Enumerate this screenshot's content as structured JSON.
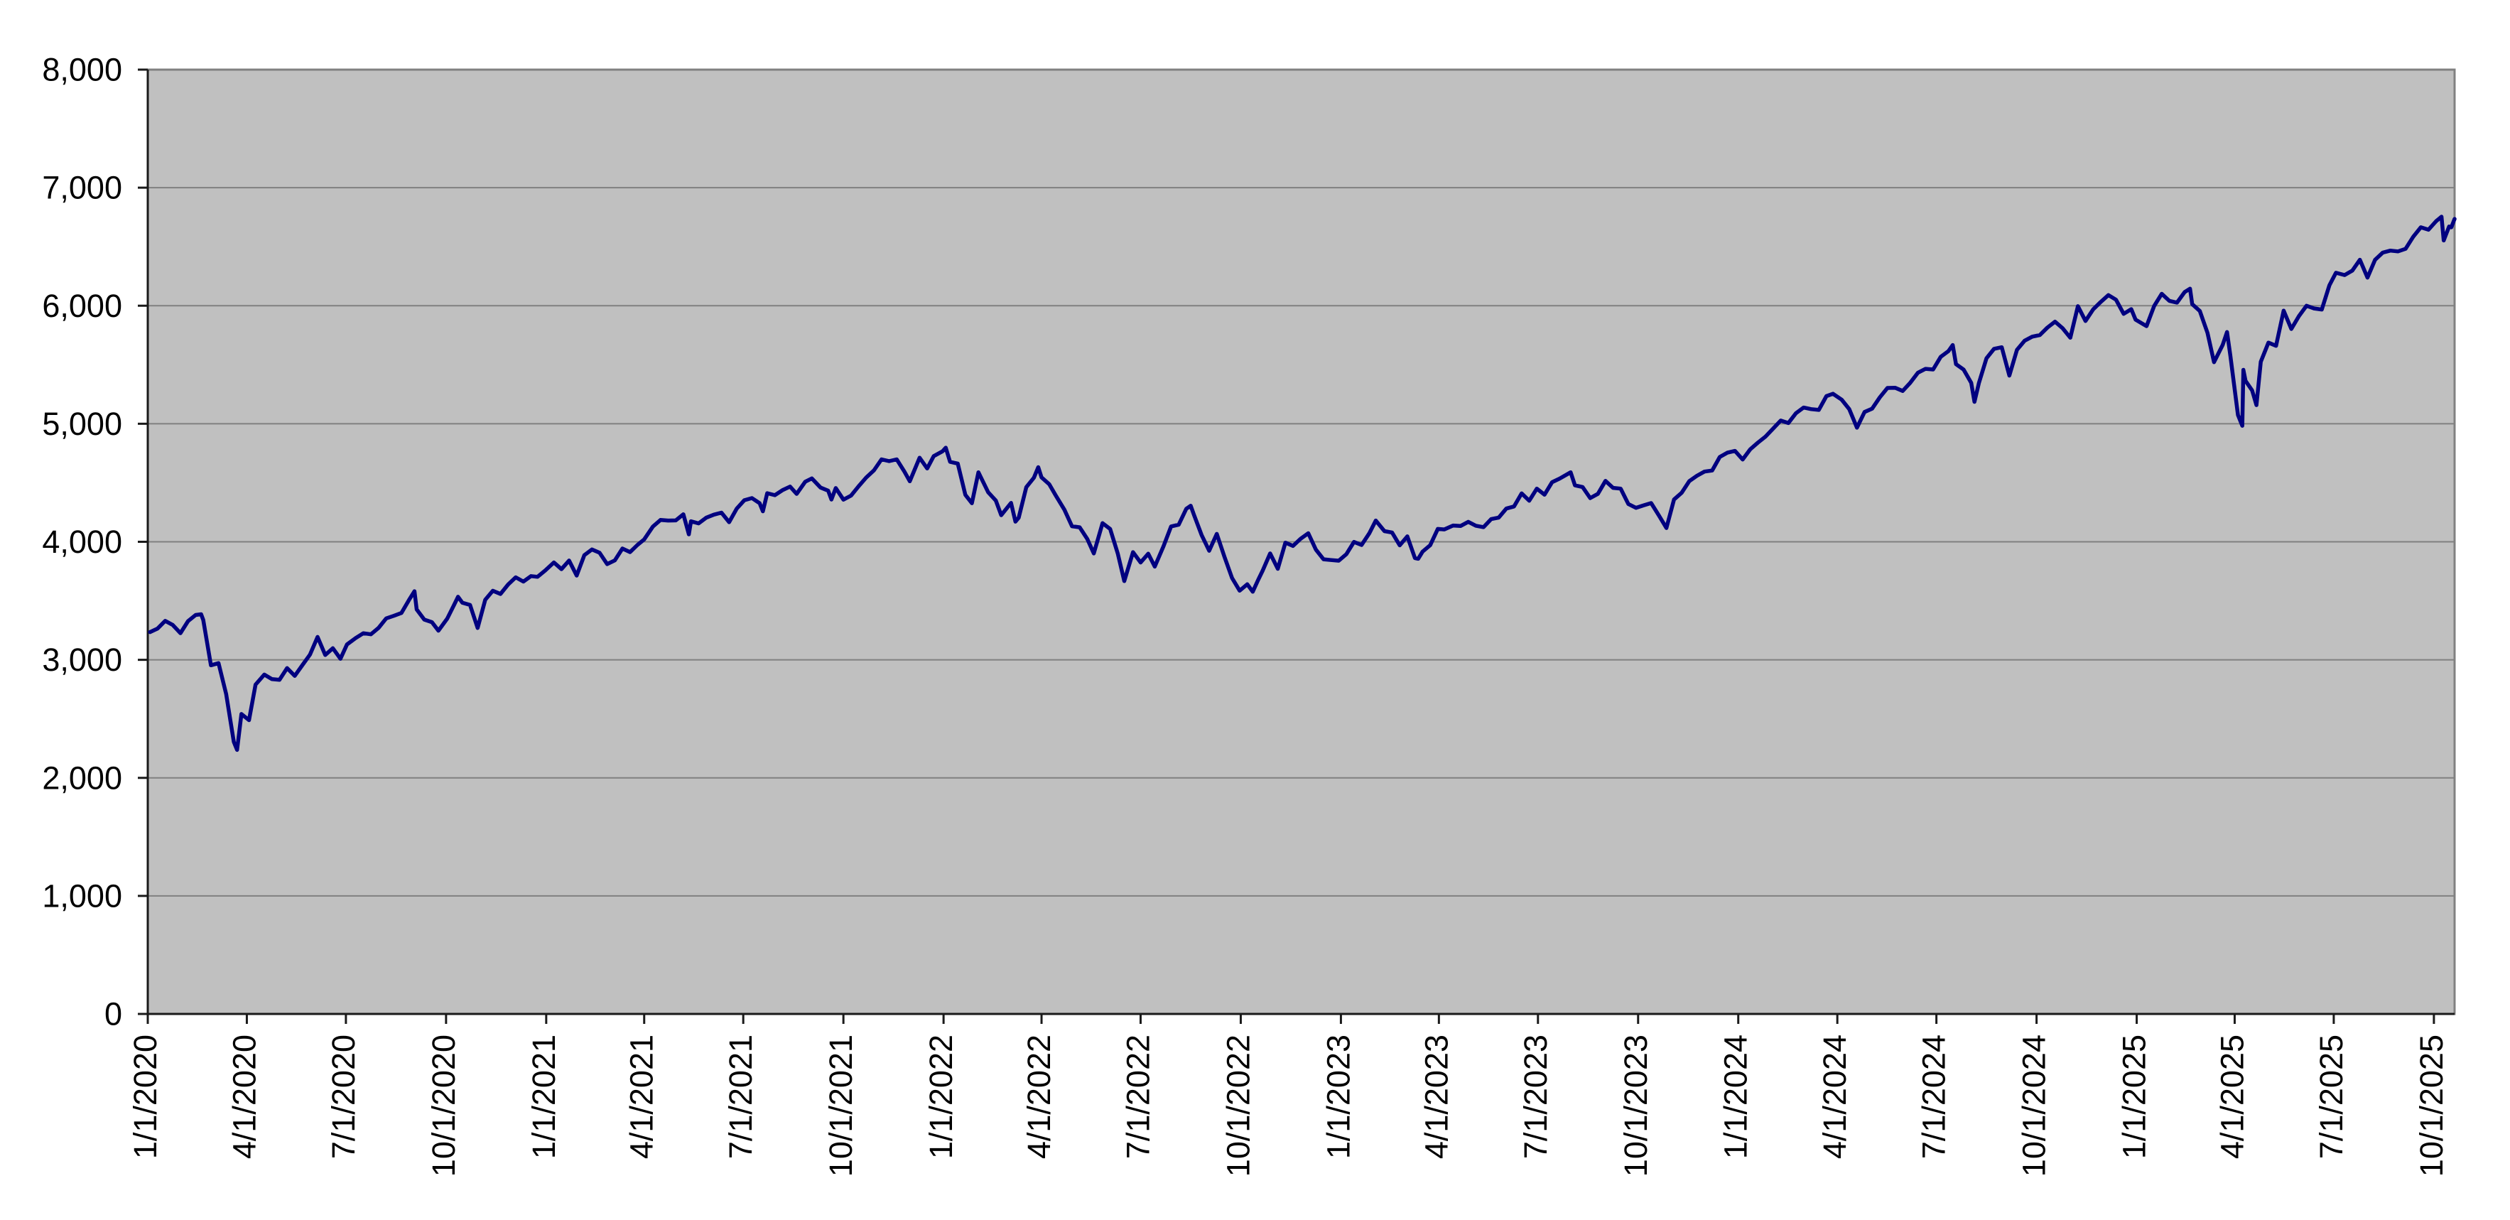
{
  "chart_data": {
    "type": "line",
    "title": "",
    "xlabel": "",
    "ylabel": "",
    "legend": "none",
    "grid": "horizontal",
    "plot_bg_color": "#c0c0c0",
    "grid_color": "#808080",
    "axis_color": "#1a1a1a",
    "line_color": "#000080",
    "ylim": [
      0,
      8000
    ],
    "y_ticks": [
      0,
      1000,
      2000,
      3000,
      4000,
      5000,
      6000,
      7000,
      8000
    ],
    "y_tick_labels": [
      "0",
      "1,000",
      "2,000",
      "3,000",
      "4,000",
      "5,000",
      "6,000",
      "7,000",
      "8,000"
    ],
    "x_tick_labels": [
      "1/1/2020",
      "4/1/2020",
      "7/1/2020",
      "10/1/2020",
      "1/1/2021",
      "4/1/2021",
      "7/1/2021",
      "10/1/2021",
      "1/1/2022",
      "4/1/2022",
      "7/1/2022",
      "10/1/2022",
      "1/1/2023",
      "4/1/2023",
      "7/1/2023",
      "10/1/2023",
      "1/1/2024",
      "4/1/2024",
      "7/1/2024",
      "10/1/2024",
      "1/1/2025",
      "4/1/2025",
      "7/1/2025",
      "10/1/2025"
    ],
    "x_domain": [
      "1/1/2020",
      "10/20/2025"
    ],
    "points": [
      [
        "1/3/2020",
        3235
      ],
      [
        "1/10/2020",
        3265
      ],
      [
        "1/17/2020",
        3330
      ],
      [
        "1/24/2020",
        3295
      ],
      [
        "1/31/2020",
        3226
      ],
      [
        "2/7/2020",
        3328
      ],
      [
        "2/14/2020",
        3380
      ],
      [
        "2/19/2020",
        3386
      ],
      [
        "2/21/2020",
        3338
      ],
      [
        "2/28/2020",
        2954
      ],
      [
        "3/6/2020",
        2972
      ],
      [
        "3/13/2020",
        2711
      ],
      [
        "3/20/2020",
        2305
      ],
      [
        "3/23/2020",
        2237
      ],
      [
        "3/27/2020",
        2541
      ],
      [
        "4/3/2020",
        2489
      ],
      [
        "4/9/2020",
        2790
      ],
      [
        "4/17/2020",
        2875
      ],
      [
        "4/24/2020",
        2837
      ],
      [
        "5/1/2020",
        2831
      ],
      [
        "5/8/2020",
        2930
      ],
      [
        "5/15/2020",
        2864
      ],
      [
        "5/22/2020",
        2955
      ],
      [
        "5/29/2020",
        3044
      ],
      [
        "6/5/2020",
        3194
      ],
      [
        "6/12/2020",
        3041
      ],
      [
        "6/19/2020",
        3098
      ],
      [
        "6/26/2020",
        3009
      ],
      [
        "7/2/2020",
        3130
      ],
      [
        "7/10/2020",
        3185
      ],
      [
        "7/17/2020",
        3225
      ],
      [
        "7/24/2020",
        3216
      ],
      [
        "7/31/2020",
        3271
      ],
      [
        "8/7/2020",
        3351
      ],
      [
        "8/14/2020",
        3373
      ],
      [
        "8/21/2020",
        3397
      ],
      [
        "8/28/2020",
        3508
      ],
      [
        "9/2/2020",
        3581
      ],
      [
        "9/4/2020",
        3427
      ],
      [
        "9/11/2020",
        3341
      ],
      [
        "9/18/2020",
        3319
      ],
      [
        "9/24/2020",
        3247
      ],
      [
        "10/2/2020",
        3348
      ],
      [
        "10/9/2020",
        3477
      ],
      [
        "10/12/2020",
        3534
      ],
      [
        "10/16/2020",
        3484
      ],
      [
        "10/23/2020",
        3465
      ],
      [
        "10/30/2020",
        3270
      ],
      [
        "11/6/2020",
        3509
      ],
      [
        "11/13/2020",
        3585
      ],
      [
        "11/20/2020",
        3558
      ],
      [
        "11/27/2020",
        3638
      ],
      [
        "12/4/2020",
        3699
      ],
      [
        "12/11/2020",
        3663
      ],
      [
        "12/18/2020",
        3709
      ],
      [
        "12/24/2020",
        3703
      ],
      [
        "12/31/2020",
        3756
      ],
      [
        "1/8/2021",
        3825
      ],
      [
        "1/15/2021",
        3768
      ],
      [
        "1/22/2021",
        3841
      ],
      [
        "1/29/2021",
        3714
      ],
      [
        "2/5/2021",
        3887
      ],
      [
        "2/12/2021",
        3935
      ],
      [
        "2/19/2021",
        3907
      ],
      [
        "2/26/2021",
        3811
      ],
      [
        "3/5/2021",
        3842
      ],
      [
        "3/12/2021",
        3943
      ],
      [
        "3/19/2021",
        3913
      ],
      [
        "3/26/2021",
        3975
      ],
      [
        "4/1/2021",
        4020
      ],
      [
        "4/9/2021",
        4129
      ],
      [
        "4/16/2021",
        4185
      ],
      [
        "4/23/2021",
        4180
      ],
      [
        "4/30/2021",
        4181
      ],
      [
        "5/7/2021",
        4233
      ],
      [
        "5/12/2021",
        4063
      ],
      [
        "5/14/2021",
        4174
      ],
      [
        "5/21/2021",
        4156
      ],
      [
        "5/28/2021",
        4204
      ],
      [
        "6/4/2021",
        4230
      ],
      [
        "6/11/2021",
        4247
      ],
      [
        "6/18/2021",
        4166
      ],
      [
        "6/25/2021",
        4281
      ],
      [
        "7/2/2021",
        4352
      ],
      [
        "7/9/2021",
        4370
      ],
      [
        "7/16/2021",
        4327
      ],
      [
        "7/19/2021",
        4258
      ],
      [
        "7/23/2021",
        4412
      ],
      [
        "7/30/2021",
        4395
      ],
      [
        "8/6/2021",
        4437
      ],
      [
        "8/13/2021",
        4468
      ],
      [
        "8/19/2021",
        4406
      ],
      [
        "8/27/2021",
        4509
      ],
      [
        "9/2/2021",
        4537
      ],
      [
        "9/10/2021",
        4459
      ],
      [
        "9/17/2021",
        4433
      ],
      [
        "9/20/2021",
        4358
      ],
      [
        "9/24/2021",
        4455
      ],
      [
        "10/1/2021",
        4357
      ],
      [
        "10/8/2021",
        4391
      ],
      [
        "10/15/2021",
        4471
      ],
      [
        "10/22/2021",
        4545
      ],
      [
        "10/29/2021",
        4605
      ],
      [
        "11/5/2021",
        4698
      ],
      [
        "11/12/2021",
        4683
      ],
      [
        "11/19/2021",
        4698
      ],
      [
        "11/26/2021",
        4595
      ],
      [
        "12/1/2021",
        4513
      ],
      [
        "12/10/2021",
        4712
      ],
      [
        "12/17/2021",
        4621
      ],
      [
        "12/23/2021",
        4726
      ],
      [
        "12/31/2021",
        4766
      ],
      [
        "1/3/2022",
        4797
      ],
      [
        "1/7/2022",
        4677
      ],
      [
        "1/14/2022",
        4663
      ],
      [
        "1/21/2022",
        4398
      ],
      [
        "1/27/2022",
        4327
      ],
      [
        "2/2/2022",
        4589
      ],
      [
        "2/11/2022",
        4419
      ],
      [
        "2/18/2022",
        4349
      ],
      [
        "2/23/2022",
        4226
      ],
      [
        "3/4/2022",
        4329
      ],
      [
        "3/8/2022",
        4171
      ],
      [
        "3/11/2022",
        4204
      ],
      [
        "3/18/2022",
        4463
      ],
      [
        "3/25/2022",
        4543
      ],
      [
        "3/29/2022",
        4632
      ],
      [
        "4/1/2022",
        4546
      ],
      [
        "4/8/2022",
        4488
      ],
      [
        "4/14/2022",
        4393
      ],
      [
        "4/22/2022",
        4272
      ],
      [
        "4/29/2022",
        4132
      ],
      [
        "5/6/2022",
        4123
      ],
      [
        "5/13/2022",
        4024
      ],
      [
        "5/19/2022",
        3901
      ],
      [
        "5/27/2022",
        4158
      ],
      [
        "6/3/2022",
        4109
      ],
      [
        "6/10/2022",
        3901
      ],
      [
        "6/16/2022",
        3667
      ],
      [
        "6/24/2022",
        3912
      ],
      [
        "7/1/2022",
        3825
      ],
      [
        "7/8/2022",
        3899
      ],
      [
        "7/14/2022",
        3790
      ],
      [
        "7/22/2022",
        3962
      ],
      [
        "7/29/2022",
        4130
      ],
      [
        "8/5/2022",
        4145
      ],
      [
        "8/12/2022",
        4280
      ],
      [
        "8/16/2022",
        4305
      ],
      [
        "8/19/2022",
        4228
      ],
      [
        "8/26/2022",
        4058
      ],
      [
        "9/2/2022",
        3924
      ],
      [
        "9/9/2022",
        4067
      ],
      [
        "9/16/2022",
        3873
      ],
      [
        "9/23/2022",
        3693
      ],
      [
        "9/30/2022",
        3586
      ],
      [
        "10/7/2022",
        3640
      ],
      [
        "10/12/2022",
        3577
      ],
      [
        "10/17/2022",
        3678
      ],
      [
        "10/21/2022",
        3753
      ],
      [
        "10/28/2022",
        3901
      ],
      [
        "11/4/2022",
        3771
      ],
      [
        "11/11/2022",
        3993
      ],
      [
        "11/18/2022",
        3965
      ],
      [
        "11/25/2022",
        4026
      ],
      [
        "12/2/2022",
        4072
      ],
      [
        "12/9/2022",
        3934
      ],
      [
        "12/16/2022",
        3852
      ],
      [
        "12/23/2022",
        3845
      ],
      [
        "12/30/2022",
        3840
      ],
      [
        "1/6/2023",
        3895
      ],
      [
        "1/13/2023",
        3999
      ],
      [
        "1/20/2023",
        3973
      ],
      [
        "1/27/2023",
        4071
      ],
      [
        "2/2/2023",
        4180
      ],
      [
        "2/10/2023",
        4090
      ],
      [
        "2/17/2023",
        4079
      ],
      [
        "2/24/2023",
        3970
      ],
      [
        "3/3/2023",
        4046
      ],
      [
        "3/10/2023",
        3862
      ],
      [
        "3/13/2023",
        3856
      ],
      [
        "3/17/2023",
        3917
      ],
      [
        "3/24/2023",
        3971
      ],
      [
        "3/31/2023",
        4109
      ],
      [
        "4/6/2023",
        4105
      ],
      [
        "4/14/2023",
        4138
      ],
      [
        "4/21/2023",
        4134
      ],
      [
        "4/28/2023",
        4169
      ],
      [
        "5/5/2023",
        4136
      ],
      [
        "5/12/2023",
        4124
      ],
      [
        "5/19/2023",
        4192
      ],
      [
        "5/26/2023",
        4205
      ],
      [
        "6/2/2023",
        4282
      ],
      [
        "6/9/2023",
        4299
      ],
      [
        "6/16/2023",
        4410
      ],
      [
        "6/23/2023",
        4348
      ],
      [
        "6/30/2023",
        4450
      ],
      [
        "7/7/2023",
        4399
      ],
      [
        "7/14/2023",
        4505
      ],
      [
        "7/21/2023",
        4536
      ],
      [
        "7/31/2023",
        4589
      ],
      [
        "8/4/2023",
        4478
      ],
      [
        "8/11/2023",
        4464
      ],
      [
        "8/18/2023",
        4370
      ],
      [
        "8/25/2023",
        4406
      ],
      [
        "9/1/2023",
        4516
      ],
      [
        "9/8/2023",
        4457
      ],
      [
        "9/15/2023",
        4450
      ],
      [
        "9/22/2023",
        4320
      ],
      [
        "9/29/2023",
        4288
      ],
      [
        "10/6/2023",
        4309
      ],
      [
        "10/13/2023",
        4328
      ],
      [
        "10/20/2023",
        4224
      ],
      [
        "10/27/2023",
        4117
      ],
      [
        "11/3/2023",
        4358
      ],
      [
        "11/10/2023",
        4415
      ],
      [
        "11/17/2023",
        4514
      ],
      [
        "11/24/2023",
        4559
      ],
      [
        "12/1/2023",
        4595
      ],
      [
        "12/8/2023",
        4604
      ],
      [
        "12/15/2023",
        4719
      ],
      [
        "12/22/2023",
        4755
      ],
      [
        "12/29/2023",
        4770
      ],
      [
        "1/5/2024",
        4697
      ],
      [
        "1/12/2024",
        4784
      ],
      [
        "1/19/2024",
        4840
      ],
      [
        "1/26/2024",
        4891
      ],
      [
        "2/2/2024",
        4959
      ],
      [
        "2/9/2024",
        5027
      ],
      [
        "2/16/2024",
        5006
      ],
      [
        "2/23/2024",
        5089
      ],
      [
        "3/1/2024",
        5137
      ],
      [
        "3/8/2024",
        5124
      ],
      [
        "3/15/2024",
        5117
      ],
      [
        "3/22/2024",
        5234
      ],
      [
        "3/28/2024",
        5254
      ],
      [
        "4/5/2024",
        5204
      ],
      [
        "4/12/2024",
        5123
      ],
      [
        "4/19/2024",
        4967
      ],
      [
        "4/26/2024",
        5100
      ],
      [
        "5/3/2024",
        5128
      ],
      [
        "5/10/2024",
        5223
      ],
      [
        "5/17/2024",
        5303
      ],
      [
        "5/24/2024",
        5305
      ],
      [
        "5/31/2024",
        5278
      ],
      [
        "6/7/2024",
        5347
      ],
      [
        "6/14/2024",
        5432
      ],
      [
        "6/21/2024",
        5465
      ],
      [
        "6/28/2024",
        5460
      ],
      [
        "7/5/2024",
        5567
      ],
      [
        "7/12/2024",
        5615
      ],
      [
        "7/16/2024",
        5667
      ],
      [
        "7/19/2024",
        5505
      ],
      [
        "7/26/2024",
        5459
      ],
      [
        "8/2/2024",
        5347
      ],
      [
        "8/5/2024",
        5186
      ],
      [
        "8/9/2024",
        5344
      ],
      [
        "8/16/2024",
        5554
      ],
      [
        "8/23/2024",
        5635
      ],
      [
        "8/30/2024",
        5648
      ],
      [
        "9/6/2024",
        5408
      ],
      [
        "9/13/2024",
        5626
      ],
      [
        "9/20/2024",
        5703
      ],
      [
        "9/27/2024",
        5738
      ],
      [
        "10/4/2024",
        5751
      ],
      [
        "10/11/2024",
        5815
      ],
      [
        "10/18/2024",
        5865
      ],
      [
        "10/25/2024",
        5808
      ],
      [
        "11/1/2024",
        5729
      ],
      [
        "11/8/2024",
        5996
      ],
      [
        "11/15/2024",
        5871
      ],
      [
        "11/22/2024",
        5969
      ],
      [
        "11/29/2024",
        6032
      ],
      [
        "12/6/2024",
        6090
      ],
      [
        "12/13/2024",
        6051
      ],
      [
        "12/20/2024",
        5931
      ],
      [
        "12/27/2024",
        5971
      ],
      [
        "12/31/2024",
        5882
      ],
      [
        "1/10/2025",
        5827
      ],
      [
        "1/17/2025",
        5997
      ],
      [
        "1/24/2025",
        6101
      ],
      [
        "1/31/2025",
        6041
      ],
      [
        "2/7/2025",
        6026
      ],
      [
        "2/14/2025",
        6115
      ],
      [
        "2/19/2025",
        6144
      ],
      [
        "2/21/2025",
        6013
      ],
      [
        "2/28/2025",
        5955
      ],
      [
        "3/7/2025",
        5770
      ],
      [
        "3/13/2025",
        5522
      ],
      [
        "3/21/2025",
        5668
      ],
      [
        "3/25/2025",
        5777
      ],
      [
        "3/28/2025",
        5581
      ],
      [
        "4/4/2025",
        5074
      ],
      [
        "4/8/2025",
        4983
      ],
      [
        "4/9/2025",
        5457
      ],
      [
        "4/11/2025",
        5363
      ],
      [
        "4/17/2025",
        5283
      ],
      [
        "4/21/2025",
        5158
      ],
      [
        "4/25/2025",
        5525
      ],
      [
        "5/2/2025",
        5687
      ],
      [
        "5/9/2025",
        5660
      ],
      [
        "5/16/2025",
        5958
      ],
      [
        "5/23/2025",
        5803
      ],
      [
        "5/30/2025",
        5912
      ],
      [
        "6/6/2025",
        6000
      ],
      [
        "6/13/2025",
        5977
      ],
      [
        "6/20/2025",
        5968
      ],
      [
        "6/27/2025",
        6173
      ],
      [
        "7/3/2025",
        6279
      ],
      [
        "7/11/2025",
        6260
      ],
      [
        "7/18/2025",
        6297
      ],
      [
        "7/25/2025",
        6389
      ],
      [
        "8/1/2025",
        6238
      ],
      [
        "8/8/2025",
        6389
      ],
      [
        "8/15/2025",
        6450
      ],
      [
        "8/22/2025",
        6467
      ],
      [
        "8/29/2025",
        6460
      ],
      [
        "9/5/2025",
        6482
      ],
      [
        "9/12/2025",
        6584
      ],
      [
        "9/19/2025",
        6664
      ],
      [
        "9/26/2025",
        6644
      ],
      [
        "10/3/2025",
        6716
      ],
      [
        "10/8/2025",
        6754
      ],
      [
        "10/10/2025",
        6553
      ],
      [
        "10/15/2025",
        6671
      ],
      [
        "10/17/2025",
        6664
      ],
      [
        "10/20/2025",
        6735
      ]
    ]
  }
}
